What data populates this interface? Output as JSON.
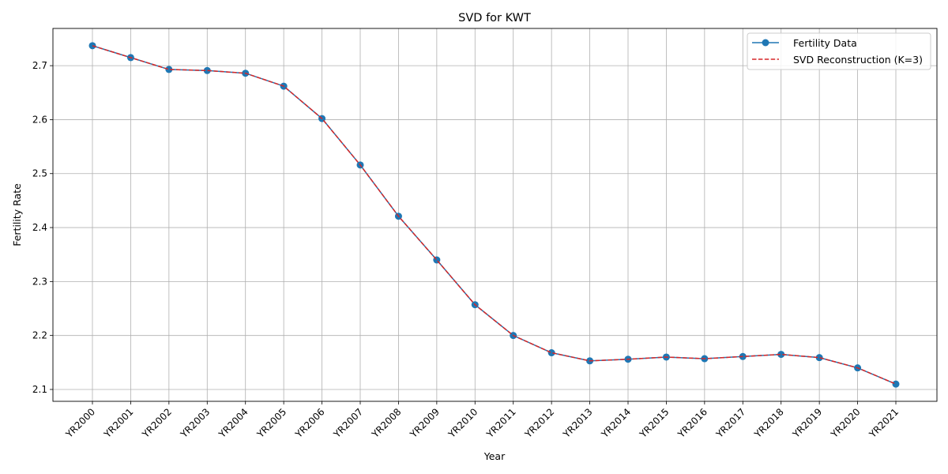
{
  "chart_data": {
    "type": "line",
    "title": "SVD for KWT",
    "xlabel": "Year",
    "ylabel": "Fertility Rate",
    "categories": [
      "YR2000",
      "YR2001",
      "YR2002",
      "YR2003",
      "YR2004",
      "YR2005",
      "YR2006",
      "YR2007",
      "YR2008",
      "YR2009",
      "YR2010",
      "YR2011",
      "YR2012",
      "YR2013",
      "YR2014",
      "YR2015",
      "YR2016",
      "YR2017",
      "YR2018",
      "YR2019",
      "YR2020",
      "YR2021"
    ],
    "ylim": [
      2.078,
      2.769
    ],
    "yticks": [
      "2.1",
      "2.2",
      "2.3",
      "2.4",
      "2.5",
      "2.6",
      "2.7"
    ],
    "grid": true,
    "legend_position": "top-right",
    "series": [
      {
        "name": "Fertility Data",
        "style": "solid line with circle markers",
        "color": "#1f77b4",
        "values": [
          2.737,
          2.715,
          2.693,
          2.691,
          2.686,
          2.662,
          2.602,
          2.516,
          2.421,
          2.34,
          2.257,
          2.2,
          2.168,
          2.153,
          2.156,
          2.16,
          2.157,
          2.161,
          2.165,
          2.159,
          2.14,
          2.11
        ]
      },
      {
        "name": "SVD Reconstruction (K=3)",
        "style": "dashed line",
        "color": "#d62728",
        "values": [
          2.737,
          2.715,
          2.693,
          2.691,
          2.686,
          2.662,
          2.602,
          2.516,
          2.421,
          2.34,
          2.257,
          2.2,
          2.168,
          2.153,
          2.156,
          2.16,
          2.157,
          2.161,
          2.165,
          2.159,
          2.14,
          2.11
        ]
      }
    ]
  }
}
